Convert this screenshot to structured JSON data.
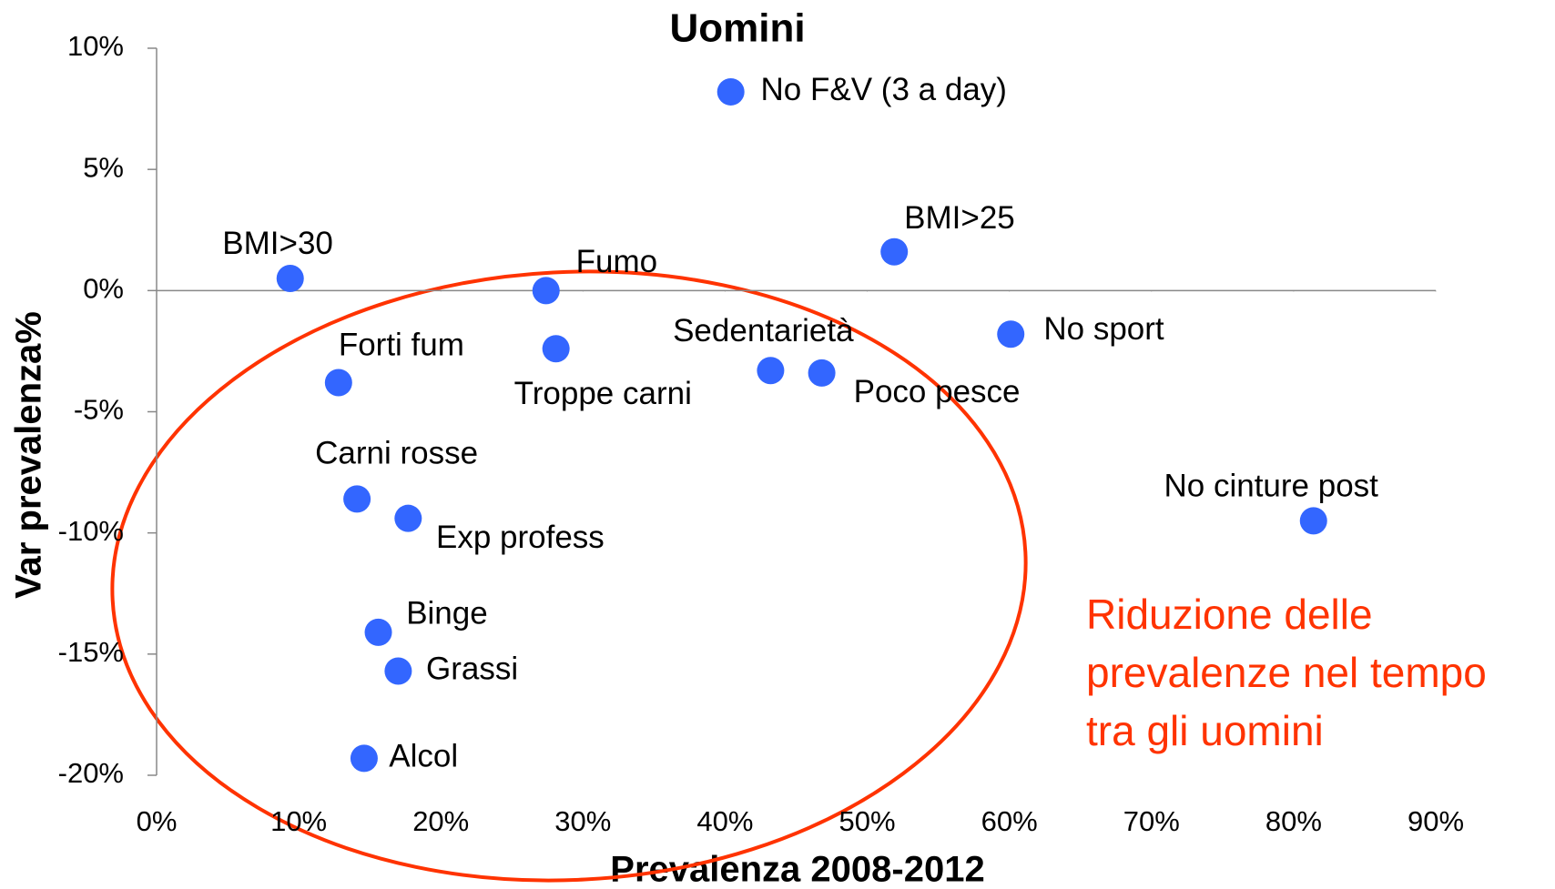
{
  "chart_data": {
    "type": "scatter",
    "title": "Uomini",
    "x_label": "Prevalenza 2008-2012",
    "y_label": "Var prevalenza%",
    "annotation": [
      "Riduzione delle",
      "prevalenze nel tempo",
      "tra gli uomini"
    ],
    "color": "#3366ff",
    "annotation_color": "#ff3300",
    "labels": [
      "No F&V (3 a day)",
      "BMI>25",
      "BMI>30",
      "Fumo",
      "Troppe  carni",
      "Forti fum",
      "Sedentarietà",
      "Poco pesce",
      "No sport",
      "No cinture post",
      "Carni rosse",
      "Exp profess",
      "Binge",
      "Grassi",
      "Alcol"
    ],
    "x": [
      40.4,
      51.9,
      9.4,
      27.4,
      28.1,
      12.8,
      43.2,
      46.8,
      60.1,
      81.4,
      14.1,
      17.7,
      15.6,
      17.0,
      14.6
    ],
    "y": [
      8.2,
      1.6,
      0.5,
      0,
      -2.4,
      -3.8,
      -3.3,
      -3.4,
      -1.8,
      -9.5,
      -8.6,
      -9.4,
      -14.1,
      -15.7,
      -19.3
    ],
    "xlim": [
      0,
      90
    ],
    "xticks": [
      {
        "value": 0,
        "label": "0%"
      },
      {
        "value": 10,
        "label": "10%"
      },
      {
        "value": 20,
        "label": "20%"
      },
      {
        "value": 30,
        "label": "30%"
      },
      {
        "value": 40,
        "label": "40%"
      },
      {
        "value": 50,
        "label": "50%"
      },
      {
        "value": 60,
        "label": "60%"
      },
      {
        "value": 70,
        "label": "70%"
      },
      {
        "value": 80,
        "label": "80%"
      },
      {
        "value": 90,
        "label": "90%"
      }
    ],
    "ylim": [
      -20,
      10
    ],
    "yticks": [
      {
        "value": -20,
        "label": "-20%"
      },
      {
        "value": -15,
        "label": "-15%"
      },
      {
        "value": -10,
        "label": "-10%"
      },
      {
        "value": -5,
        "label": "-5%"
      },
      {
        "value": 0,
        "label": "0%"
      },
      {
        "value": 5,
        "label": "5%"
      },
      {
        "value": 10,
        "label": "10%"
      }
    ]
  }
}
